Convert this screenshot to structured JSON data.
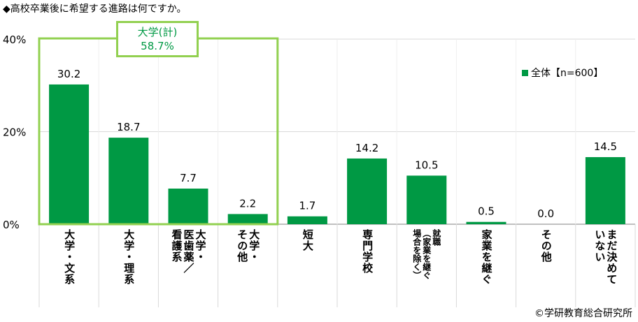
{
  "title": "◆高校卒業後に希望する進路は何ですか。",
  "copyright": "©学研教育総合研究所",
  "legend": {
    "label": "全体【n=600】"
  },
  "group": {
    "name": "大学(計)",
    "value": "58.7%"
  },
  "colors": {
    "bar": "#009944",
    "group_box": "#92d050",
    "gridline": "#d9d9d9",
    "axis": "#808080"
  },
  "chart_data": {
    "type": "bar",
    "title": "◆高校卒業後に希望する進路は何ですか。",
    "xlabel": "",
    "ylabel": "",
    "ylim": [
      0,
      40
    ],
    "yticks": [
      "0%",
      "20%",
      "40%"
    ],
    "series": [
      {
        "name": "全体【n=600】"
      }
    ],
    "categories": [
      "大学・文系",
      "大学・理系",
      "大学・医歯薬／看護系",
      "大学・その他",
      "短大",
      "専門学校",
      "就職（家業を継ぐ場合を除く）",
      "家業を継ぐ",
      "その他",
      "まだ決めていない"
    ],
    "category_columns": [
      [
        "大学・文系"
      ],
      [
        "大学・理系"
      ],
      [
        "大学・",
        "医歯薬／",
        "看護系"
      ],
      [
        "大学・",
        "その他"
      ],
      [
        "短大"
      ],
      [
        "専門学校"
      ],
      [
        "就職",
        "（家業を継ぐ",
        "場合を除く）"
      ],
      [
        "家業を継ぐ"
      ],
      [
        "その他"
      ],
      [
        "まだ決めて",
        "いない"
      ]
    ],
    "values": [
      30.2,
      18.7,
      7.7,
      2.2,
      1.7,
      14.2,
      10.5,
      0.5,
      0.0,
      14.5
    ],
    "value_labels": [
      "30.2",
      "18.7",
      "7.7",
      "2.2",
      "1.7",
      "14.2",
      "10.5",
      "0.5",
      "0.0",
      "14.5"
    ]
  }
}
